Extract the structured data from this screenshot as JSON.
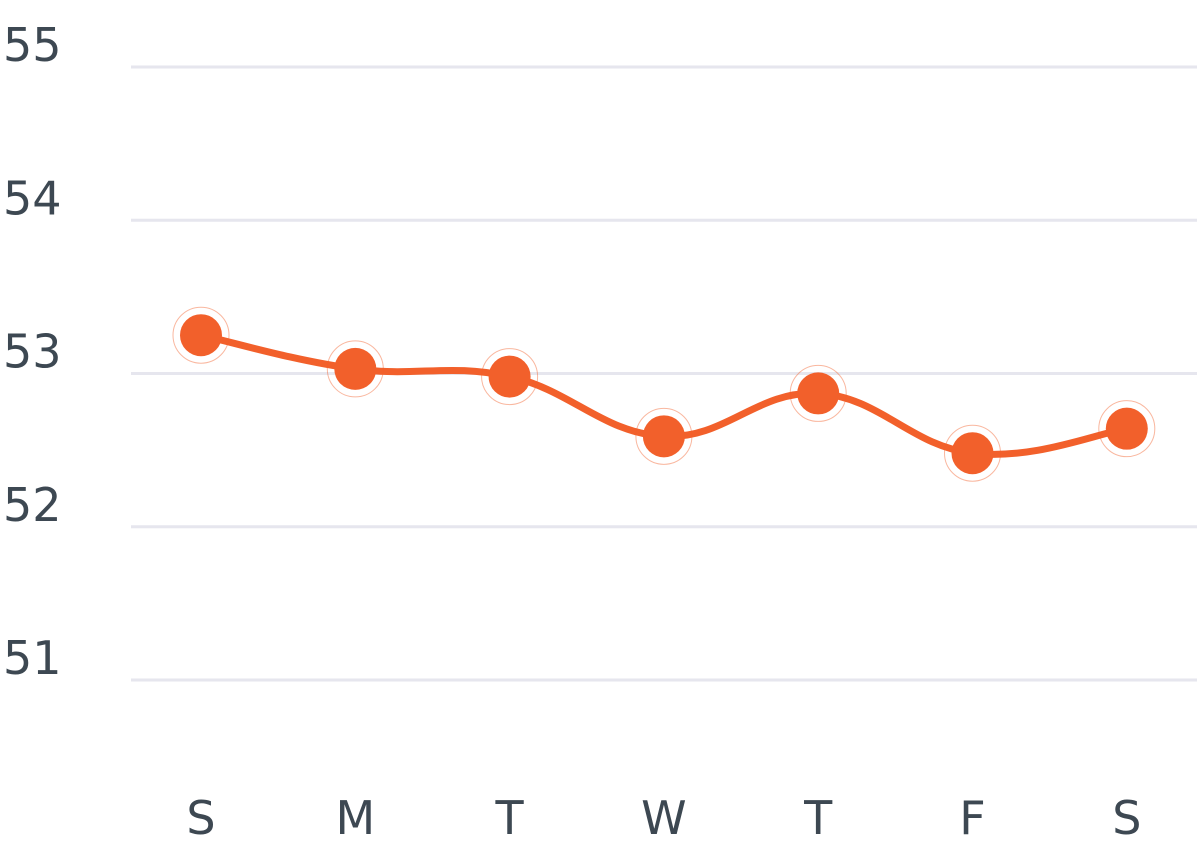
{
  "colors": {
    "series": "#f2602b",
    "grid": "#e6e6ee",
    "text": "#3d4852"
  },
  "chart_data": {
    "type": "line",
    "title": "",
    "xlabel": "",
    "ylabel": "",
    "categories": [
      "S",
      "M",
      "T",
      "W",
      "T",
      "F",
      "S"
    ],
    "series": [
      {
        "values": [
          53.25,
          53.03,
          52.98,
          52.59,
          52.87,
          52.48,
          52.64
        ]
      }
    ],
    "ylim": [
      50,
      55
    ],
    "yticks": [
      51,
      52,
      53,
      54,
      55
    ],
    "grid": true,
    "legend": "none",
    "markers": true,
    "smooth": true
  }
}
